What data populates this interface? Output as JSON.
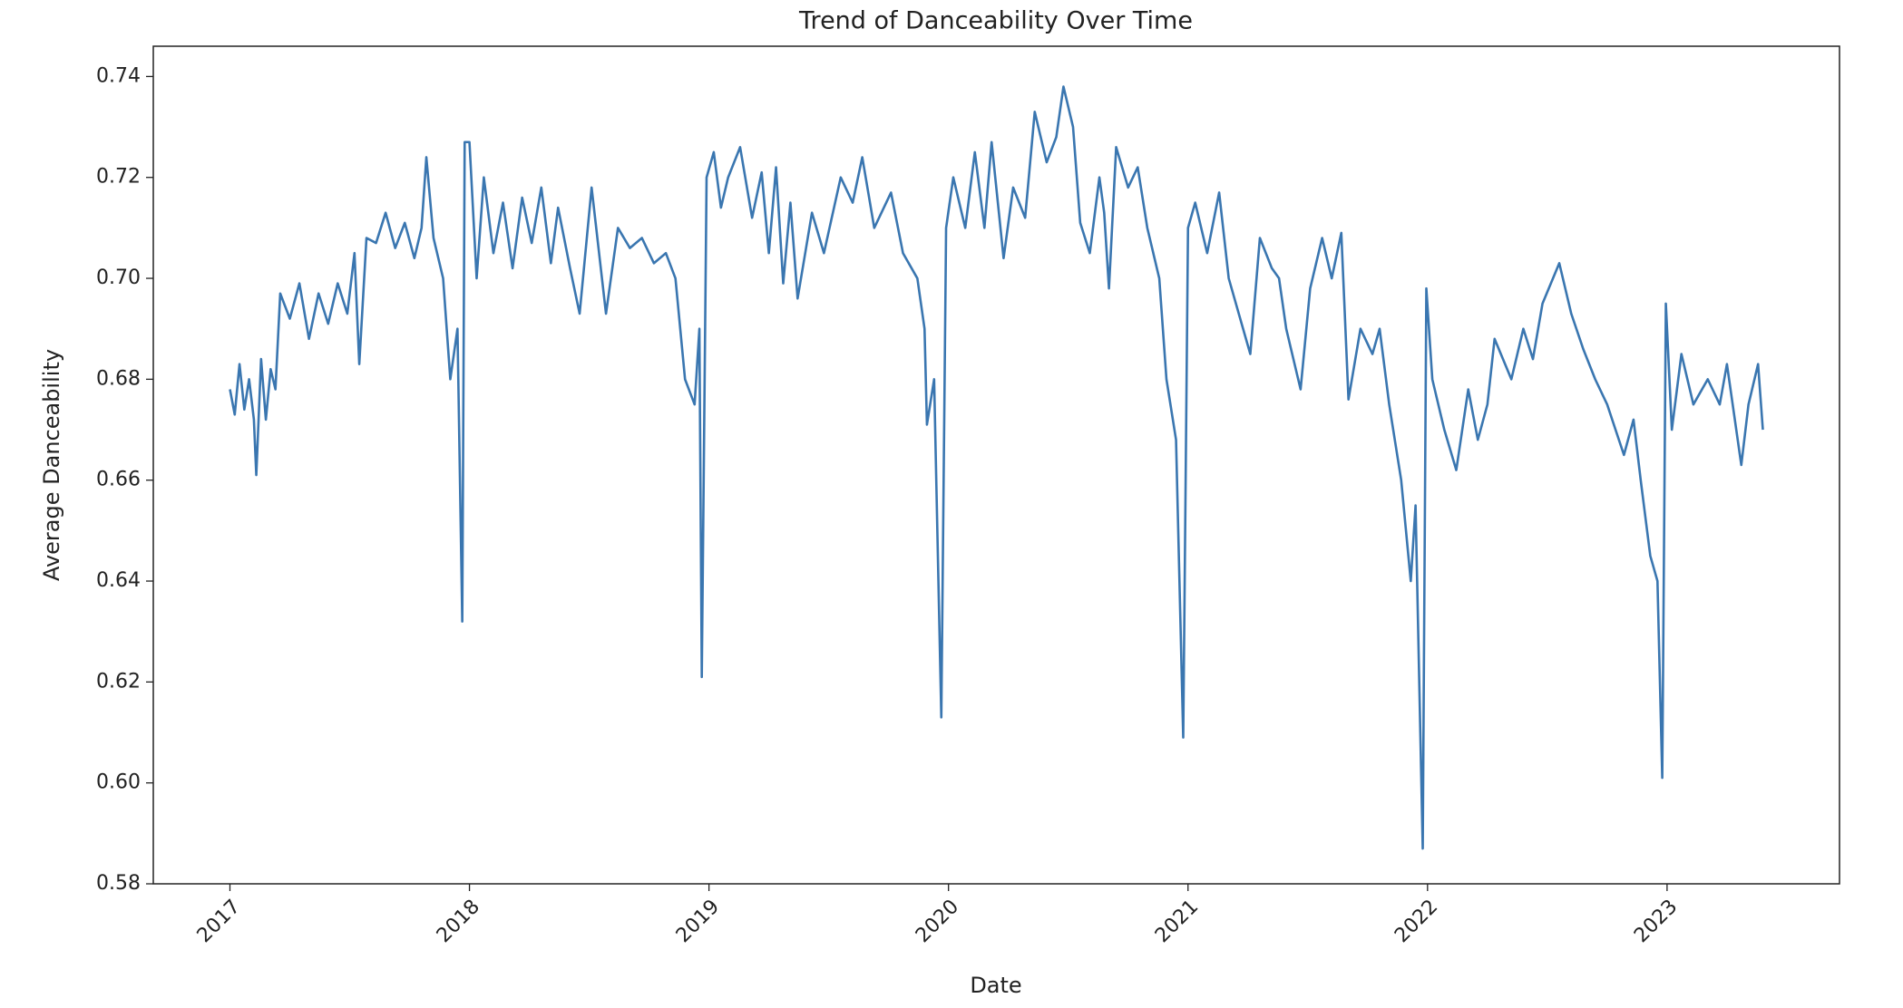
{
  "chart_data": {
    "type": "line",
    "title": "Trend of Danceability Over Time",
    "x_label": "Date",
    "y_label": "Average Danceability",
    "color": "#3a76b0",
    "grid": false,
    "xlim": [
      2016.68,
      2023.72
    ],
    "xticks": [
      2017,
      2018,
      2019,
      2020,
      2021,
      2022,
      2023
    ],
    "ylim": [
      0.58,
      0.746
    ],
    "yticks": [
      {
        "value": 0.58,
        "label": "0.58"
      },
      {
        "value": 0.6,
        "label": "0.60"
      },
      {
        "value": 0.62,
        "label": "0.62"
      },
      {
        "value": 0.64,
        "label": "0.64"
      },
      {
        "value": 0.66,
        "label": "0.66"
      },
      {
        "value": 0.68,
        "label": "0.68"
      },
      {
        "value": 0.7,
        "label": "0.70"
      },
      {
        "value": 0.72,
        "label": "0.72"
      },
      {
        "value": 0.74,
        "label": "0.74"
      }
    ],
    "x": [
      2017.0,
      2017.02,
      2017.04,
      2017.06,
      2017.08,
      2017.1,
      2017.11,
      2017.13,
      2017.15,
      2017.17,
      2017.19,
      2017.21,
      2017.25,
      2017.29,
      2017.33,
      2017.37,
      2017.41,
      2017.45,
      2017.49,
      2017.52,
      2017.54,
      2017.57,
      2017.61,
      2017.65,
      2017.69,
      2017.73,
      2017.77,
      2017.8,
      2017.82,
      2017.85,
      2017.89,
      2017.92,
      2017.95,
      2017.97,
      2017.98,
      2018.0,
      2018.03,
      2018.06,
      2018.1,
      2018.14,
      2018.18,
      2018.22,
      2018.26,
      2018.3,
      2018.34,
      2018.37,
      2018.42,
      2018.46,
      2018.51,
      2018.57,
      2018.62,
      2018.67,
      2018.72,
      2018.77,
      2018.82,
      2018.86,
      2018.9,
      2018.94,
      2018.96,
      2018.97,
      2018.99,
      2019.02,
      2019.05,
      2019.08,
      2019.13,
      2019.18,
      2019.22,
      2019.25,
      2019.28,
      2019.31,
      2019.34,
      2019.37,
      2019.43,
      2019.48,
      2019.55,
      2019.6,
      2019.64,
      2019.69,
      2019.76,
      2019.81,
      2019.87,
      2019.9,
      2019.91,
      2019.94,
      2019.97,
      2019.99,
      2020.02,
      2020.07,
      2020.11,
      2020.15,
      2020.18,
      2020.23,
      2020.27,
      2020.32,
      2020.36,
      2020.41,
      2020.45,
      2020.48,
      2020.52,
      2020.55,
      2020.59,
      2020.63,
      2020.65,
      2020.67,
      2020.7,
      2020.75,
      2020.79,
      2020.83,
      2020.88,
      2020.91,
      2020.95,
      2020.98,
      2021.0,
      2021.03,
      2021.08,
      2021.13,
      2021.17,
      2021.23,
      2021.26,
      2021.3,
      2021.35,
      2021.38,
      2021.41,
      2021.47,
      2021.51,
      2021.56,
      2021.6,
      2021.64,
      2021.67,
      2021.72,
      2021.77,
      2021.8,
      2021.84,
      2021.89,
      2021.93,
      2021.95,
      2021.98,
      2021.995,
      2022.02,
      2022.07,
      2022.12,
      2022.17,
      2022.21,
      2022.25,
      2022.28,
      2022.35,
      2022.4,
      2022.44,
      2022.48,
      2022.55,
      2022.6,
      2022.65,
      2022.7,
      2022.75,
      2022.82,
      2022.86,
      2022.89,
      2022.93,
      2022.96,
      2022.98,
      2022.995,
      2023.02,
      2023.06,
      2023.11,
      2023.17,
      2023.22,
      2023.25,
      2023.31,
      2023.34,
      2023.38,
      2023.4
    ],
    "values": [
      0.678,
      0.673,
      0.683,
      0.674,
      0.68,
      0.672,
      0.661,
      0.684,
      0.672,
      0.682,
      0.678,
      0.697,
      0.692,
      0.699,
      0.688,
      0.697,
      0.691,
      0.699,
      0.693,
      0.705,
      0.683,
      0.708,
      0.707,
      0.713,
      0.706,
      0.711,
      0.704,
      0.71,
      0.724,
      0.708,
      0.7,
      0.68,
      0.69,
      0.632,
      0.727,
      0.727,
      0.7,
      0.72,
      0.705,
      0.715,
      0.702,
      0.716,
      0.707,
      0.718,
      0.703,
      0.714,
      0.702,
      0.693,
      0.718,
      0.693,
      0.71,
      0.706,
      0.708,
      0.703,
      0.705,
      0.7,
      0.68,
      0.675,
      0.69,
      0.621,
      0.72,
      0.725,
      0.714,
      0.72,
      0.726,
      0.712,
      0.721,
      0.705,
      0.722,
      0.699,
      0.715,
      0.696,
      0.713,
      0.705,
      0.72,
      0.715,
      0.724,
      0.71,
      0.717,
      0.705,
      0.7,
      0.69,
      0.671,
      0.68,
      0.613,
      0.71,
      0.72,
      0.71,
      0.725,
      0.71,
      0.727,
      0.704,
      0.718,
      0.712,
      0.733,
      0.723,
      0.728,
      0.738,
      0.73,
      0.711,
      0.705,
      0.72,
      0.713,
      0.698,
      0.726,
      0.718,
      0.722,
      0.71,
      0.7,
      0.68,
      0.668,
      0.609,
      0.71,
      0.715,
      0.705,
      0.717,
      0.7,
      0.69,
      0.685,
      0.708,
      0.702,
      0.7,
      0.69,
      0.678,
      0.698,
      0.708,
      0.7,
      0.709,
      0.676,
      0.69,
      0.685,
      0.69,
      0.675,
      0.66,
      0.64,
      0.655,
      0.587,
      0.698,
      0.68,
      0.67,
      0.662,
      0.678,
      0.668,
      0.675,
      0.688,
      0.68,
      0.69,
      0.684,
      0.695,
      0.703,
      0.693,
      0.686,
      0.68,
      0.675,
      0.665,
      0.672,
      0.66,
      0.645,
      0.64,
      0.601,
      0.695,
      0.67,
      0.685,
      0.675,
      0.68,
      0.675,
      0.683,
      0.663,
      0.675,
      0.683,
      0.67
    ]
  }
}
